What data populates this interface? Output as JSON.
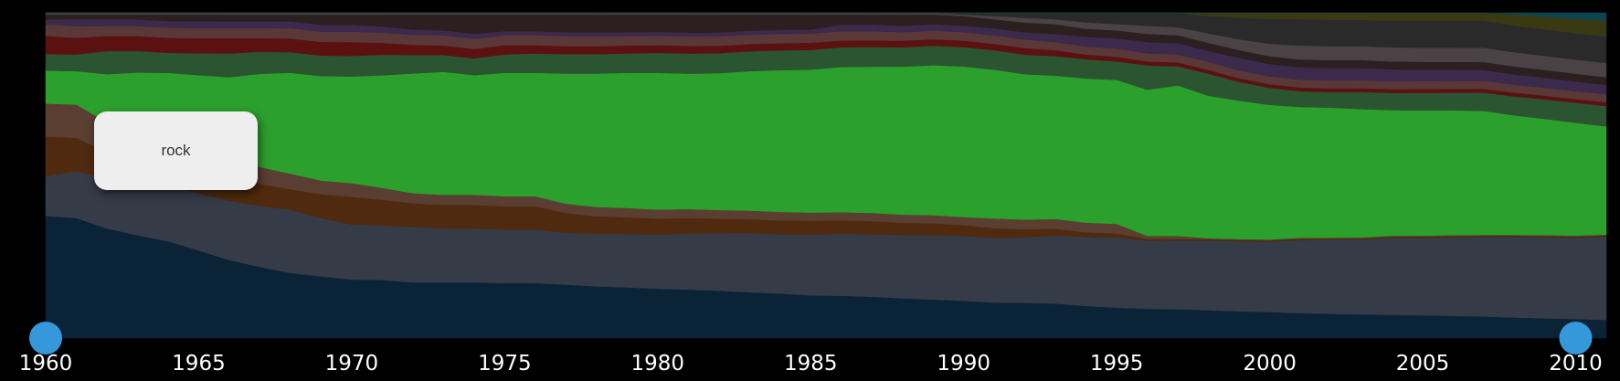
{
  "chart_data": {
    "type": "area",
    "stacked": true,
    "normalized": true,
    "x": [
      1960,
      1961,
      1962,
      1963,
      1964,
      1965,
      1966,
      1967,
      1968,
      1969,
      1970,
      1971,
      1972,
      1973,
      1974,
      1975,
      1976,
      1977,
      1978,
      1979,
      1980,
      1981,
      1982,
      1983,
      1984,
      1985,
      1986,
      1987,
      1988,
      1989,
      1990,
      1991,
      1992,
      1993,
      1994,
      1995,
      1996,
      1997,
      1998,
      1999,
      2000,
      2001,
      2002,
      2003,
      2004,
      2005,
      2006,
      2007,
      2008,
      2009,
      2010,
      2011
    ],
    "xlim": [
      1960,
      2011
    ],
    "ylim": [
      0,
      1
    ],
    "x_ticks": [
      "1960",
      "1965",
      "1970",
      "1975",
      "1980",
      "1985",
      "1990",
      "1995",
      "2000",
      "2005",
      "2010"
    ],
    "x_tick_values": [
      1960,
      1965,
      1970,
      1975,
      1980,
      1985,
      1990,
      1995,
      2000,
      2005,
      2010
    ],
    "range_handles": [
      1960,
      2010
    ],
    "tooltip_label": "rock",
    "series": [
      {
        "color": "#0b2336",
        "values": [
          0.37,
          0.36,
          0.33,
          0.31,
          0.29,
          0.26,
          0.23,
          0.21,
          0.19,
          0.18,
          0.17,
          0.17,
          0.165,
          0.165,
          0.165,
          0.165,
          0.165,
          0.16,
          0.155,
          0.152,
          0.148,
          0.145,
          0.142,
          0.138,
          0.135,
          0.13,
          0.128,
          0.126,
          0.122,
          0.118,
          0.115,
          0.11,
          0.108,
          0.106,
          0.1,
          0.095,
          0.09,
          0.09,
          0.088,
          0.086,
          0.084,
          0.08,
          0.078,
          0.076,
          0.074,
          0.072,
          0.07,
          0.068,
          0.065,
          0.063,
          0.061,
          0.058
        ]
      },
      {
        "color": "#353c47",
        "values": [
          0.12,
          0.14,
          0.15,
          0.16,
          0.165,
          0.17,
          0.175,
          0.18,
          0.185,
          0.17,
          0.16,
          0.16,
          0.165,
          0.16,
          0.16,
          0.16,
          0.16,
          0.155,
          0.158,
          0.16,
          0.162,
          0.168,
          0.172,
          0.178,
          0.18,
          0.185,
          0.188,
          0.19,
          0.195,
          0.198,
          0.2,
          0.2,
          0.2,
          0.21,
          0.215,
          0.22,
          0.21,
          0.215,
          0.22,
          0.225,
          0.227,
          0.235,
          0.237,
          0.24,
          0.245,
          0.245,
          0.248,
          0.25,
          0.255,
          0.258,
          0.26,
          0.265
        ]
      },
      {
        "color": "#502a0e",
        "values": [
          0.12,
          0.1,
          0.08,
          0.075,
          0.07,
          0.07,
          0.07,
          0.065,
          0.06,
          0.07,
          0.08,
          0.075,
          0.07,
          0.07,
          0.07,
          0.07,
          0.07,
          0.06,
          0.052,
          0.05,
          0.048,
          0.046,
          0.044,
          0.042,
          0.042,
          0.042,
          0.04,
          0.04,
          0.038,
          0.036,
          0.034,
          0.03,
          0.025,
          0.02,
          0.015,
          0.012,
          0.005,
          0.004,
          0.004,
          0.004,
          0.004,
          0.004,
          0.004,
          0.004,
          0.004,
          0.004,
          0.004,
          0.004,
          0.004,
          0.004,
          0.004,
          0.004
        ]
      },
      {
        "color": "#5a3e32",
        "values": [
          0.1,
          0.1,
          0.09,
          0.09,
          0.08,
          0.07,
          0.06,
          0.05,
          0.045,
          0.04,
          0.04,
          0.035,
          0.03,
          0.03,
          0.03,
          0.03,
          0.03,
          0.028,
          0.028,
          0.028,
          0.027,
          0.027,
          0.026,
          0.026,
          0.026,
          0.025,
          0.025,
          0.025,
          0.025,
          0.025,
          0.025,
          0.03,
          0.03,
          0.03,
          0.03,
          0.03,
          0.01,
          0.01,
          0.003,
          0.003,
          0.003,
          0.003,
          0.003,
          0.003,
          0.003,
          0.003,
          0.003,
          0.003,
          0.003,
          0.003,
          0.003,
          0.003
        ]
      },
      {
        "color": "#2ca02c",
        "values": [
          0.1,
          0.1,
          0.145,
          0.165,
          0.19,
          0.21,
          0.235,
          0.275,
          0.295,
          0.305,
          0.31,
          0.33,
          0.355,
          0.365,
          0.355,
          0.37,
          0.37,
          0.39,
          0.4,
          0.405,
          0.41,
          0.405,
          0.41,
          0.42,
          0.43,
          0.435,
          0.44,
          0.445,
          0.455,
          0.46,
          0.465,
          0.46,
          0.445,
          0.44,
          0.45,
          0.45,
          0.45,
          0.47,
          0.45,
          0.444,
          0.434,
          0.42,
          0.417,
          0.412,
          0.4,
          0.396,
          0.394,
          0.39,
          0.378,
          0.37,
          0.361,
          0.345
        ]
      },
      {
        "color": "#2b5431",
        "values": [
          0.05,
          0.05,
          0.07,
          0.065,
          0.06,
          0.065,
          0.07,
          0.065,
          0.06,
          0.06,
          0.06,
          0.06,
          0.055,
          0.05,
          0.05,
          0.055,
          0.058,
          0.058,
          0.058,
          0.058,
          0.06,
          0.06,
          0.06,
          0.06,
          0.06,
          0.06,
          0.06,
          0.06,
          0.06,
          0.06,
          0.06,
          0.06,
          0.06,
          0.06,
          0.06,
          0.058,
          0.075,
          0.06,
          0.07,
          0.06,
          0.055,
          0.05,
          0.05,
          0.055,
          0.055,
          0.056,
          0.056,
          0.058,
          0.06,
          0.062,
          0.064,
          0.065
        ]
      },
      {
        "color": "#5c1111",
        "values": [
          0.055,
          0.05,
          0.045,
          0.045,
          0.045,
          0.045,
          0.045,
          0.04,
          0.04,
          0.04,
          0.04,
          0.035,
          0.03,
          0.028,
          0.028,
          0.028,
          0.025,
          0.024,
          0.024,
          0.024,
          0.023,
          0.023,
          0.022,
          0.022,
          0.022,
          0.022,
          0.02,
          0.02,
          0.02,
          0.02,
          0.02,
          0.02,
          0.02,
          0.018,
          0.015,
          0.015,
          0.012,
          0.012,
          0.012,
          0.012,
          0.012,
          0.012,
          0.012,
          0.012,
          0.012,
          0.012,
          0.012,
          0.012,
          0.012,
          0.012,
          0.012,
          0.012
        ]
      },
      {
        "color": "#5a3838",
        "values": [
          0.035,
          0.035,
          0.03,
          0.03,
          0.03,
          0.03,
          0.03,
          0.03,
          0.03,
          0.03,
          0.03,
          0.03,
          0.03,
          0.03,
          0.03,
          0.03,
          0.03,
          0.03,
          0.03,
          0.028,
          0.028,
          0.028,
          0.028,
          0.028,
          0.028,
          0.028,
          0.028,
          0.028,
          0.026,
          0.026,
          0.026,
          0.026,
          0.026,
          0.025,
          0.025,
          0.025,
          0.025,
          0.025,
          0.025,
          0.025,
          0.025,
          0.025,
          0.025,
          0.025,
          0.025,
          0.025,
          0.025,
          0.025,
          0.025,
          0.025,
          0.025,
          0.025
        ]
      },
      {
        "color": "#3b2a4c",
        "values": [
          0.015,
          0.02,
          0.02,
          0.02,
          0.02,
          0.02,
          0.02,
          0.02,
          0.02,
          0.02,
          0.02,
          0.018,
          0.015,
          0.015,
          0.015,
          0.012,
          0.012,
          0.012,
          0.012,
          0.012,
          0.012,
          0.012,
          0.012,
          0.012,
          0.012,
          0.012,
          0.02,
          0.02,
          0.02,
          0.02,
          0.02,
          0.022,
          0.022,
          0.025,
          0.03,
          0.032,
          0.035,
          0.035,
          0.035,
          0.04,
          0.04,
          0.04,
          0.04,
          0.04,
          0.038,
          0.036,
          0.035,
          0.034,
          0.033,
          0.032,
          0.031,
          0.03
        ]
      },
      {
        "color": "#2c1f1f",
        "values": [
          0.015,
          0.015,
          0.015,
          0.015,
          0.02,
          0.02,
          0.02,
          0.02,
          0.02,
          0.03,
          0.03,
          0.035,
          0.045,
          0.047,
          0.057,
          0.05,
          0.05,
          0.053,
          0.053,
          0.053,
          0.052,
          0.054,
          0.054,
          0.049,
          0.047,
          0.046,
          0.031,
          0.031,
          0.035,
          0.03,
          0.03,
          0.028,
          0.03,
          0.03,
          0.025,
          0.025,
          0.025,
          0.025,
          0.025,
          0.025,
          0.025,
          0.025,
          0.025,
          0.025,
          0.025,
          0.025,
          0.025,
          0.025,
          0.025,
          0.025,
          0.025,
          0.025
        ]
      },
      {
        "color": "#4a4245",
        "values": [
          0.005,
          0.005,
          0.005,
          0.005,
          0.005,
          0.005,
          0.005,
          0.005,
          0.005,
          0.005,
          0.005,
          0.005,
          0.005,
          0.005,
          0.005,
          0.005,
          0.005,
          0.005,
          0.005,
          0.005,
          0.005,
          0.005,
          0.005,
          0.005,
          0.005,
          0.005,
          0.005,
          0.005,
          0.005,
          0.005,
          0.005,
          0.01,
          0.015,
          0.015,
          0.02,
          0.02,
          0.025,
          0.025,
          0.03,
          0.035,
          0.04,
          0.045,
          0.045,
          0.045,
          0.045,
          0.045,
          0.045,
          0.045,
          0.045,
          0.045,
          0.045,
          0.045
        ]
      },
      {
        "color": "#2a2a2a",
        "values": [
          0.0,
          0.0,
          0.0,
          0.0,
          0.0,
          0.0,
          0.0,
          0.0,
          0.0,
          0.0,
          0.0,
          0.0,
          0.0,
          0.0,
          0.0,
          0.0,
          0.0,
          0.0,
          0.0,
          0.0,
          0.0,
          0.0,
          0.0,
          0.0,
          0.0,
          0.0,
          0.0,
          0.0,
          0.0,
          0.0,
          0.005,
          0.01,
          0.015,
          0.02,
          0.03,
          0.035,
          0.04,
          0.045,
          0.055,
          0.07,
          0.08,
          0.085,
          0.085,
          0.085,
          0.085,
          0.085,
          0.085,
          0.085,
          0.085,
          0.085,
          0.085,
          0.085
        ]
      },
      {
        "color": "#5a2a55",
        "values": [
          0.0,
          0.0,
          0.0,
          0.0,
          0.0,
          0.0,
          0.0,
          0.0,
          0.0,
          0.0,
          0.0,
          0.0,
          0.0,
          0.0,
          0.0,
          0.0,
          0.0,
          0.0,
          0.0,
          0.0,
          0.0,
          0.0,
          0.0,
          0.0,
          0.0,
          0.0,
          0.0,
          0.0,
          0.0,
          0.0,
          0.0,
          0.0,
          0.0,
          0.0,
          0.0,
          0.0,
          0.0,
          0.0,
          0.0,
          0.0,
          0.0,
          0.0,
          0.0,
          0.0,
          0.0,
          0.0,
          0.0,
          0.0,
          0.0,
          0.0,
          0.0,
          0.0
        ]
      },
      {
        "color": "#3a3a12",
        "values": [
          0.0,
          0.0,
          0.0,
          0.0,
          0.0,
          0.0,
          0.0,
          0.0,
          0.0,
          0.0,
          0.0,
          0.0,
          0.0,
          0.0,
          0.0,
          0.0,
          0.0,
          0.0,
          0.0,
          0.0,
          0.0,
          0.0,
          0.0,
          0.0,
          0.0,
          0.0,
          0.0,
          0.0,
          0.0,
          0.0,
          0.0,
          0.0,
          0.0,
          0.0,
          0.0,
          0.0,
          0.0,
          0.0,
          0.01,
          0.015,
          0.02,
          0.02,
          0.022,
          0.022,
          0.025,
          0.025,
          0.025,
          0.025,
          0.035,
          0.04,
          0.045,
          0.05
        ]
      },
      {
        "color": "#0e4450",
        "values": [
          0.0,
          0.0,
          0.0,
          0.0,
          0.0,
          0.0,
          0.0,
          0.0,
          0.0,
          0.0,
          0.0,
          0.0,
          0.0,
          0.0,
          0.0,
          0.0,
          0.0,
          0.0,
          0.0,
          0.0,
          0.0,
          0.0,
          0.0,
          0.0,
          0.0,
          0.0,
          0.0,
          0.0,
          0.0,
          0.0,
          0.0,
          0.0,
          0.0,
          0.0,
          0.0,
          0.0,
          0.0,
          0.0,
          0.0,
          0.0,
          0.0,
          0.0,
          0.0,
          0.0,
          0.0,
          0.0,
          0.0,
          0.0,
          0.005,
          0.012,
          0.02,
          0.025
        ]
      }
    ]
  }
}
